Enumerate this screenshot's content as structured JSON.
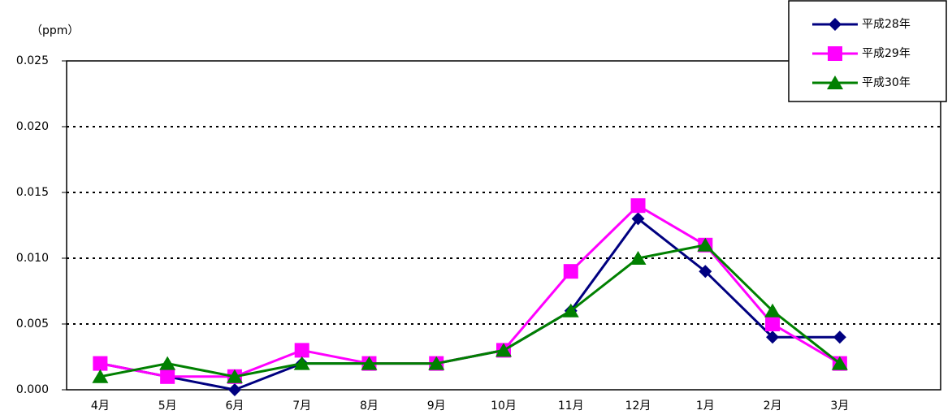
{
  "chart_data": {
    "type": "line",
    "y_label": "（ppm）",
    "categories": [
      "4月",
      "5月",
      "6月",
      "7月",
      "8月",
      "9月",
      "10月",
      "11月",
      "12月",
      "1月",
      "2月",
      "3月",
      null
    ],
    "series": [
      {
        "name": "平成28年",
        "color": "#000080",
        "marker": "diamond",
        "values": [
          0.002,
          0.001,
          0.0,
          0.002,
          0.002,
          0.002,
          0.003,
          0.006,
          0.013,
          0.009,
          0.004,
          0.004,
          null
        ]
      },
      {
        "name": "平成29年",
        "color": "#ff00ff",
        "marker": "square",
        "values": [
          0.002,
          0.001,
          0.001,
          0.003,
          0.002,
          0.002,
          0.003,
          0.009,
          0.014,
          0.011,
          0.005,
          0.002,
          null
        ]
      },
      {
        "name": "平成30年",
        "color": "#008000",
        "marker": "triangle",
        "values": [
          0.001,
          0.002,
          0.001,
          0.002,
          0.002,
          0.002,
          0.003,
          0.006,
          0.01,
          0.011,
          0.006,
          0.002,
          null
        ]
      }
    ],
    "ylim": [
      0,
      0.025
    ],
    "yticks": [
      {
        "value": 0,
        "label": "0.000"
      },
      {
        "value": 0.005,
        "label": "0.005"
      },
      {
        "value": 0.01,
        "label": "0.010"
      },
      {
        "value": 0.015,
        "label": "0.015"
      },
      {
        "value": 0.02,
        "label": "0.020"
      },
      {
        "value": 0.025,
        "label": "0.025"
      }
    ],
    "grid": true,
    "legend": "top-right"
  }
}
